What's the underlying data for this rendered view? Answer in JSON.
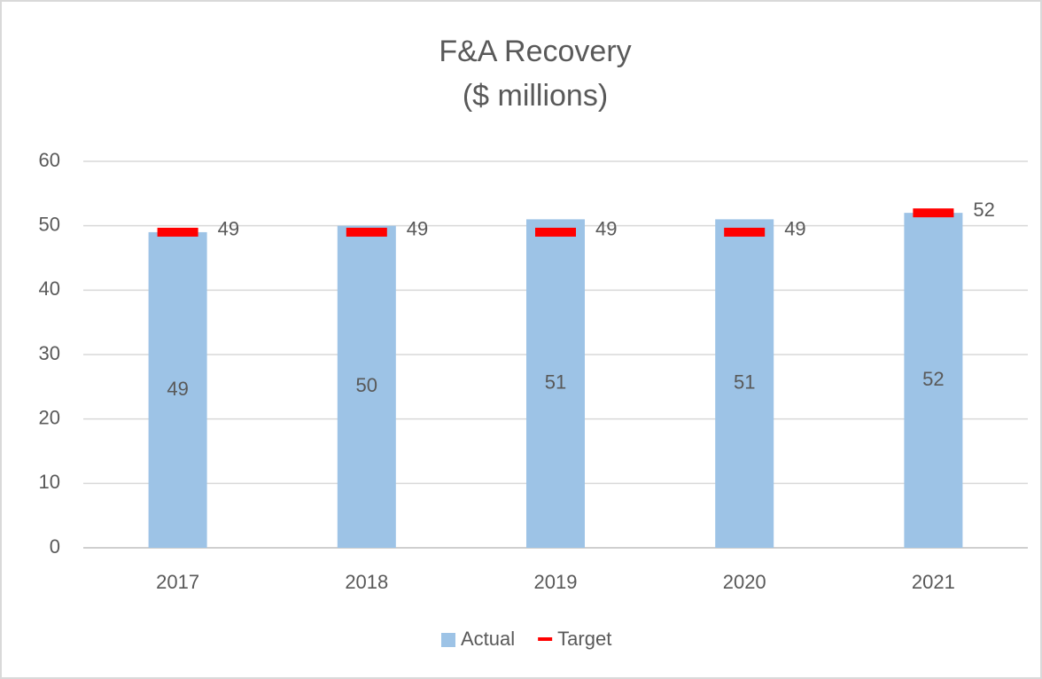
{
  "chart_data": {
    "type": "bar",
    "title": "F&A Recovery",
    "subtitle": "($ millions)",
    "categories": [
      "2017",
      "2018",
      "2019",
      "2020",
      "2021"
    ],
    "series": [
      {
        "name": "Actual",
        "type": "bar",
        "color": "#9dc3e6",
        "values": [
          49,
          50,
          51,
          51,
          52
        ]
      },
      {
        "name": "Target",
        "type": "dash",
        "color": "#ff0000",
        "values": [
          49,
          49,
          49,
          49,
          52
        ]
      }
    ],
    "ylim": [
      0,
      60
    ],
    "yticks": [
      0,
      10,
      20,
      30,
      40,
      50,
      60
    ],
    "grid": true,
    "legend": "bottom"
  }
}
